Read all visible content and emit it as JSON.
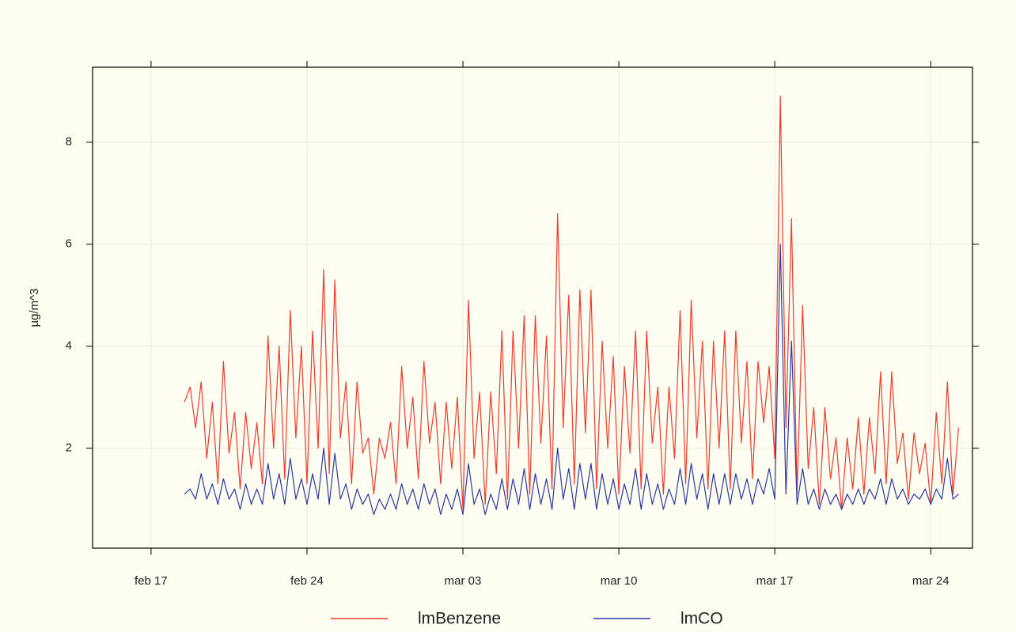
{
  "chart_data": {
    "type": "line",
    "ylabel": "µg/m^3",
    "x": [
      "feb 18 12:00",
      "feb 18 18:00",
      "feb 19 00:00",
      "feb 19 06:00",
      "feb 19 12:00",
      "feb 19 18:00",
      "feb 20 00:00",
      "feb 20 06:00",
      "feb 20 12:00",
      "feb 20 18:00",
      "feb 21 00:00",
      "feb 21 06:00",
      "feb 21 12:00",
      "feb 21 18:00",
      "feb 22 00:00",
      "feb 22 06:00",
      "feb 22 12:00",
      "feb 22 18:00",
      "feb 23 00:00",
      "feb 23 06:00",
      "feb 23 12:00",
      "feb 23 18:00",
      "feb 24 00:00",
      "feb 24 06:00",
      "feb 24 12:00",
      "feb 24 18:00",
      "feb 25 00:00",
      "feb 25 06:00",
      "feb 25 12:00",
      "feb 25 18:00",
      "feb 26 00:00",
      "feb 26 06:00",
      "feb 26 12:00",
      "feb 26 18:00",
      "feb 27 00:00",
      "feb 27 06:00",
      "feb 27 12:00",
      "feb 27 18:00",
      "feb 28 00:00",
      "feb 28 06:00",
      "feb 28 12:00",
      "feb 28 18:00",
      "mar 01 00:00",
      "mar 01 06:00",
      "mar 01 12:00",
      "mar 01 18:00",
      "mar 02 00:00",
      "mar 02 06:00",
      "mar 02 12:00",
      "mar 02 18:00",
      "mar 03 00:00",
      "mar 03 06:00",
      "mar 03 12:00",
      "mar 03 18:00",
      "mar 04 00:00",
      "mar 04 06:00",
      "mar 04 12:00",
      "mar 04 18:00",
      "mar 05 00:00",
      "mar 05 06:00",
      "mar 05 12:00",
      "mar 05 18:00",
      "mar 06 00:00",
      "mar 06 06:00",
      "mar 06 12:00",
      "mar 06 18:00",
      "mar 07 00:00",
      "mar 07 06:00",
      "mar 07 12:00",
      "mar 07 18:00",
      "mar 08 00:00",
      "mar 08 06:00",
      "mar 08 12:00",
      "mar 08 18:00",
      "mar 09 00:00",
      "mar 09 06:00",
      "mar 09 12:00",
      "mar 09 18:00",
      "mar 10 00:00",
      "mar 10 06:00",
      "mar 10 12:00",
      "mar 10 18:00",
      "mar 11 00:00",
      "mar 11 06:00",
      "mar 11 12:00",
      "mar 11 18:00",
      "mar 12 00:00",
      "mar 12 06:00",
      "mar 12 12:00",
      "mar 12 18:00",
      "mar 13 00:00",
      "mar 13 06:00",
      "mar 13 12:00",
      "mar 13 18:00",
      "mar 14 00:00",
      "mar 14 06:00",
      "mar 14 12:00",
      "mar 14 18:00",
      "mar 15 00:00",
      "mar 15 06:00",
      "mar 15 12:00",
      "mar 15 18:00",
      "mar 16 00:00",
      "mar 16 06:00",
      "mar 16 12:00",
      "mar 16 18:00",
      "mar 17 00:00",
      "mar 17 06:00",
      "mar 17 12:00",
      "mar 17 18:00",
      "mar 18 00:00",
      "mar 18 06:00",
      "mar 18 12:00",
      "mar 18 18:00",
      "mar 19 00:00",
      "mar 19 06:00",
      "mar 19 12:00",
      "mar 19 18:00",
      "mar 20 00:00",
      "mar 20 06:00",
      "mar 20 12:00",
      "mar 20 18:00",
      "mar 21 00:00",
      "mar 21 06:00",
      "mar 21 12:00",
      "mar 21 18:00",
      "mar 22 00:00",
      "mar 22 06:00",
      "mar 22 12:00",
      "mar 22 18:00",
      "mar 23 00:00",
      "mar 23 06:00",
      "mar 23 12:00",
      "mar 23 18:00",
      "mar 24 00:00",
      "mar 24 06:00",
      "mar 24 12:00",
      "mar 24 18:00",
      "mar 25 00:00",
      "mar 25 06:00"
    ],
    "series": [
      {
        "name": "lmBenzene",
        "color": "#f03a2a",
        "values": [
          2.9,
          3.2,
          2.4,
          3.3,
          1.8,
          2.9,
          1.3,
          3.7,
          1.9,
          2.7,
          1.2,
          2.7,
          1.6,
          2.5,
          1.3,
          4.2,
          2.0,
          4.0,
          1.4,
          4.7,
          2.2,
          4.0,
          1.3,
          4.3,
          2.0,
          5.5,
          1.5,
          5.3,
          2.2,
          3.3,
          1.3,
          3.3,
          1.9,
          2.2,
          1.1,
          2.2,
          1.8,
          2.5,
          1.3,
          3.6,
          2.0,
          3.0,
          1.4,
          3.7,
          2.1,
          2.9,
          1.3,
          2.9,
          1.6,
          3.0,
          0.8,
          4.9,
          1.8,
          3.1,
          0.9,
          3.1,
          1.5,
          4.3,
          1.0,
          4.3,
          2.0,
          4.6,
          1.1,
          4.6,
          2.1,
          4.2,
          1.2,
          6.6,
          2.4,
          5.0,
          1.3,
          5.1,
          2.3,
          5.1,
          1.2,
          4.1,
          2.0,
          3.8,
          1.1,
          3.6,
          1.9,
          4.3,
          1.2,
          4.3,
          2.1,
          3.2,
          1.1,
          3.2,
          1.8,
          4.7,
          1.3,
          4.9,
          2.2,
          4.1,
          1.2,
          4.1,
          2.0,
          4.3,
          1.2,
          4.3,
          2.1,
          3.7,
          1.4,
          3.7,
          2.5,
          3.6,
          1.8,
          8.9,
          2.4,
          6.5,
          1.1,
          4.8,
          1.6,
          2.8,
          0.9,
          2.8,
          1.4,
          2.2,
          0.8,
          2.2,
          1.2,
          2.6,
          1.1,
          2.6,
          1.5,
          3.5,
          1.3,
          3.5,
          1.7,
          2.3,
          1.0,
          2.3,
          1.5,
          2.1,
          0.9,
          2.7,
          1.3,
          3.3,
          1.1,
          2.4
        ]
      },
      {
        "name": "lmCO",
        "color": "#2b3a9e",
        "values": [
          1.1,
          1.2,
          1.0,
          1.5,
          1.0,
          1.3,
          0.9,
          1.4,
          1.0,
          1.2,
          0.8,
          1.3,
          0.9,
          1.2,
          0.9,
          1.7,
          1.0,
          1.5,
          0.9,
          1.8,
          1.0,
          1.4,
          0.9,
          1.5,
          1.0,
          2.0,
          0.9,
          1.9,
          1.0,
          1.3,
          0.8,
          1.2,
          0.9,
          1.1,
          0.7,
          1.0,
          0.8,
          1.1,
          0.8,
          1.3,
          0.9,
          1.2,
          0.8,
          1.3,
          0.9,
          1.2,
          0.7,
          1.1,
          0.8,
          1.2,
          0.7,
          1.7,
          0.9,
          1.2,
          0.7,
          1.1,
          0.8,
          1.4,
          0.8,
          1.4,
          0.9,
          1.6,
          0.8,
          1.5,
          0.9,
          1.4,
          0.8,
          2.0,
          1.0,
          1.6,
          0.8,
          1.7,
          1.0,
          1.7,
          0.8,
          1.5,
          0.9,
          1.4,
          0.8,
          1.3,
          0.9,
          1.6,
          0.8,
          1.5,
          0.9,
          1.3,
          0.8,
          1.2,
          0.9,
          1.6,
          0.9,
          1.7,
          1.0,
          1.5,
          0.8,
          1.5,
          0.9,
          1.5,
          0.9,
          1.5,
          1.0,
          1.4,
          0.9,
          1.4,
          1.1,
          1.6,
          1.0,
          6.0,
          1.1,
          4.1,
          0.9,
          1.6,
          0.9,
          1.2,
          0.8,
          1.2,
          0.9,
          1.1,
          0.8,
          1.1,
          0.9,
          1.2,
          0.9,
          1.2,
          1.0,
          1.4,
          0.9,
          1.4,
          1.0,
          1.2,
          0.9,
          1.1,
          1.0,
          1.2,
          0.9,
          1.2,
          1.0,
          1.8,
          1.0,
          1.1
        ]
      }
    ],
    "xlim": [
      "feb 14 09:00",
      "mar 25 21:00"
    ],
    "xticks": [
      "feb 17",
      "feb 24",
      "mar 03",
      "mar 10",
      "mar 17",
      "mar 24"
    ],
    "ylim": [
      0.04,
      9.47
    ],
    "yticks": [
      2,
      4,
      6,
      8
    ],
    "grid": true,
    "legend": "bottom"
  }
}
